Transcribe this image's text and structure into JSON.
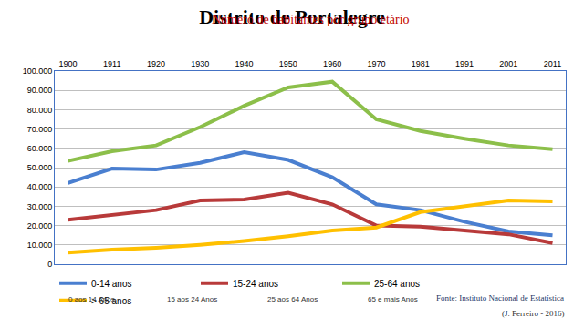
{
  "chart_data": {
    "type": "line",
    "title": "Distrito de Portalegre",
    "subtitle": "Número de habitantes por grupo etário",
    "categories": [
      "1900",
      "1911",
      "1920",
      "1930",
      "1940",
      "1950",
      "1960",
      "1970",
      "1981",
      "1991",
      "2001",
      "2011"
    ],
    "series": [
      {
        "name": "0-14 anos",
        "color": "#4a7fd0",
        "values": [
          42000,
          49500,
          49000,
          52500,
          58000,
          54000,
          45000,
          31000,
          28000,
          22000,
          17000,
          15000
        ]
      },
      {
        "name": "15-24 anos",
        "color": "#b83a3a",
        "values": [
          23000,
          25500,
          28000,
          33000,
          33500,
          37000,
          31000,
          20000,
          19500,
          17500,
          15500,
          11000
        ]
      },
      {
        "name": "25-64 anos",
        "color": "#8cbf4a",
        "values": [
          53500,
          58500,
          61500,
          71000,
          82000,
          91500,
          94500,
          75000,
          69000,
          65000,
          61500,
          59500
        ]
      },
      {
        "name": "> 65 anos",
        "color": "#ffc000",
        "values": [
          6000,
          7500,
          8500,
          10000,
          12000,
          14500,
          17500,
          19000,
          27000,
          30000,
          33000,
          32500
        ]
      }
    ],
    "ylim": [
      0,
      100000
    ],
    "yticks": [
      0,
      {
        "value": 10000,
        "label": "10.000"
      },
      {
        "value": 20000,
        "label": "20.000"
      },
      {
        "value": 30000,
        "label": "30.000"
      },
      {
        "value": 40000,
        "label": "40.000"
      },
      {
        "value": 50000,
        "label": "50.000"
      },
      {
        "value": 60000,
        "label": "60.000"
      },
      {
        "value": 70000,
        "label": "70.000"
      },
      {
        "value": 80000,
        "label": "80.000"
      },
      {
        "value": 90000,
        "label": "90.000"
      },
      {
        "value": 100000,
        "label": "100.000"
      }
    ],
    "grid": true,
    "legend": "bottom",
    "annotations": [
      "0 aos 14 Anos",
      "15 aos 24 Anos",
      "25 aos 64 Anos",
      "65 e mais Anos",
      "Fonte: Instituto Nacional de Estatística",
      "(J. Ferreiro - 2016)"
    ]
  }
}
